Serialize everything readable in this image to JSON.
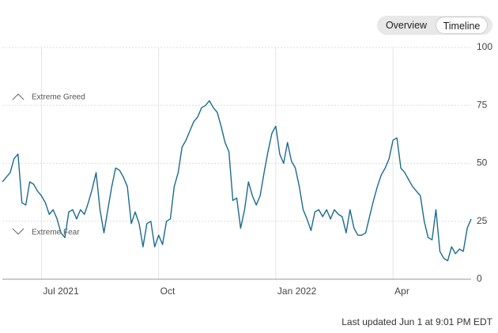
{
  "controls": {
    "options": [
      "Overview",
      "Timeline"
    ]
  },
  "footer": "Last updated Jun 1 at 9:01 PM EDT",
  "chart_data": {
    "type": "line",
    "annotations": [
      "Extreme Greed",
      "Extreme Fear"
    ],
    "categories": [
      null,
      null,
      null,
      null,
      null,
      null,
      null,
      null,
      null,
      null,
      "Jul 2021",
      null,
      null,
      null,
      null,
      null,
      null,
      null,
      null,
      null,
      null,
      null,
      null,
      null,
      null,
      null,
      null,
      null,
      null,
      null,
      null,
      null,
      null,
      null,
      null,
      null,
      null,
      null,
      null,
      null,
      "Oct",
      null,
      null,
      null,
      null,
      null,
      null,
      null,
      null,
      null,
      null,
      null,
      null,
      null,
      null,
      null,
      null,
      null,
      null,
      null,
      null,
      null,
      null,
      null,
      null,
      null,
      null,
      null,
      null,
      null,
      "Jan 2022",
      null,
      null,
      null,
      null,
      null,
      null,
      null,
      null,
      null,
      null,
      null,
      null,
      null,
      null,
      null,
      null,
      null,
      null,
      null,
      null,
      null,
      null,
      null,
      null,
      null,
      null,
      null,
      null,
      null,
      "Apr",
      null,
      null,
      null,
      null,
      null,
      null,
      null,
      null,
      null,
      null,
      null,
      null,
      null,
      null,
      null,
      null,
      null,
      null,
      null,
      null
    ],
    "series": [
      {
        "name": null,
        "color": "#1b6b8f",
        "values": [
          42,
          44,
          46,
          52,
          54,
          33,
          32,
          42,
          41,
          38,
          36,
          33,
          28,
          30,
          26,
          20,
          18,
          29,
          30,
          26,
          30,
          28,
          33,
          39,
          46,
          30,
          20,
          30,
          40,
          48,
          47,
          44,
          40,
          24,
          29,
          24,
          14,
          24,
          25,
          14,
          19,
          15,
          25,
          26,
          40,
          46,
          57,
          60,
          64,
          68,
          70,
          74,
          75,
          77,
          74,
          72,
          66,
          59,
          55,
          34,
          35,
          22,
          30,
          42,
          36,
          32,
          36,
          46,
          55,
          63,
          66,
          54,
          50,
          59,
          51,
          48,
          40,
          30,
          26,
          21,
          29,
          30,
          27,
          30,
          26,
          30,
          28,
          27,
          20,
          30,
          22,
          19,
          19,
          20,
          27,
          34,
          40,
          45,
          48,
          52,
          60,
          61,
          48,
          46,
          43,
          40,
          38,
          36,
          25,
          18,
          17,
          30,
          12,
          9,
          8,
          14,
          11,
          13,
          12,
          22,
          26
        ]
      }
    ],
    "ylim": [
      0,
      100
    ],
    "yticks": [
      0,
      25,
      50,
      75,
      100
    ],
    "grid": true
  }
}
